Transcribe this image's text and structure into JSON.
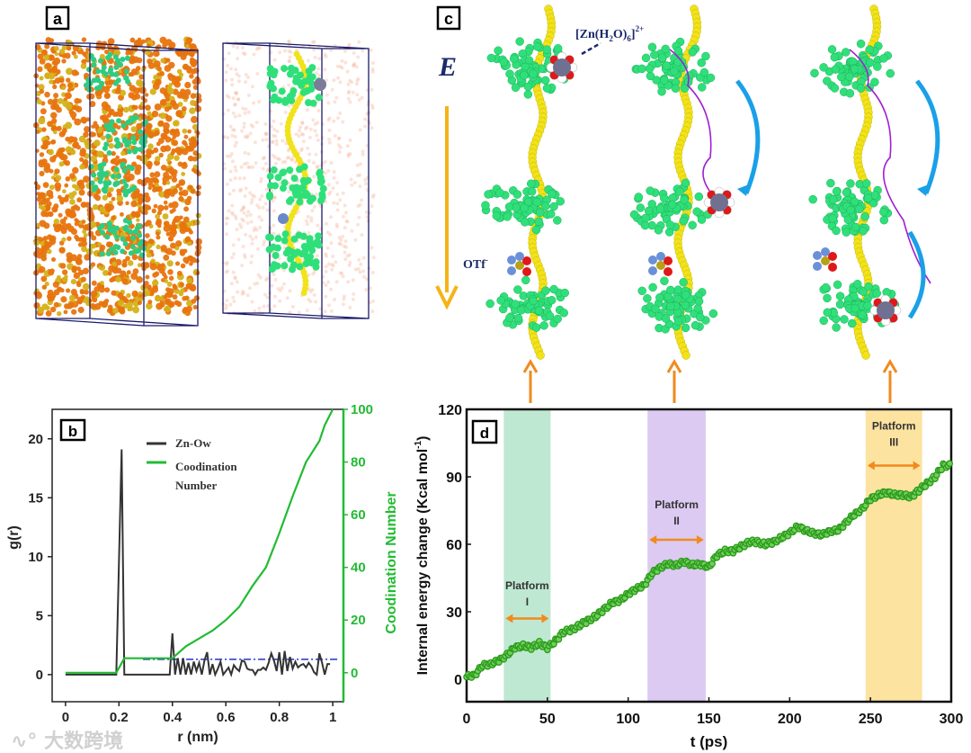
{
  "panels": {
    "a": {
      "label": "a"
    },
    "c": {
      "label": "c",
      "field_label": "E",
      "zn_label": "[Zn(H",
      "zn_sub1": "2",
      "zn_mid": "O)",
      "zn_sub2": "6",
      "zn_close": "]",
      "zn_sup": "2+",
      "otf_label": "OTf",
      "otf_sup": "-"
    }
  },
  "watermark": "大数跨境",
  "colors": {
    "zn_ow": "#333333",
    "cn": "#22bb33",
    "dash": "#2233cc",
    "energy": "#2a9a1a",
    "band1": "#bfe8d2",
    "band2": "#dccaf2",
    "band3": "#fde3a0",
    "orange": "#f08a1e",
    "green_atoms": "#2fe07a",
    "yellow_atoms": "#f2e21a"
  },
  "chart_data": [
    {
      "type": "line",
      "panel_label": "b",
      "xlabel": "r (nm)",
      "ylabel": "g(r)",
      "y2label": "Coodination Number",
      "xlim": [
        -0.05,
        1.04
      ],
      "ylim": [
        -2.3,
        22.5
      ],
      "y2lim": [
        -11,
        100
      ],
      "xticks": [
        "0",
        "0.2",
        "0.4",
        "0.6",
        "0.8",
        "1"
      ],
      "xtick_values": [
        0,
        0.2,
        0.4,
        0.6,
        0.8,
        1
      ],
      "yticks": [
        "0",
        "5",
        "10",
        "15",
        "20"
      ],
      "ytick_values": [
        0,
        5,
        10,
        15,
        20
      ],
      "y2ticks": [
        "0",
        "20",
        "40",
        "60",
        "80",
        "100"
      ],
      "y2tick_values": [
        0,
        20,
        40,
        60,
        80,
        100
      ],
      "legend": {
        "position": "top-center",
        "entries": [
          "Zn-Ow",
          "Coodination",
          "Number"
        ]
      },
      "series": [
        {
          "name": "Zn-Ow",
          "axis": "left",
          "x": [
            0,
            0.19,
            0.21,
            0.22,
            0.39,
            0.4,
            0.41,
            0.42,
            0.43,
            0.44,
            0.45,
            0.46,
            0.47,
            0.48,
            0.49,
            0.5,
            0.51,
            0.52,
            0.53,
            0.54,
            0.55,
            0.56,
            0.57,
            0.58,
            0.59,
            0.6,
            0.61,
            0.62,
            0.63,
            0.64,
            0.65,
            0.66,
            0.67,
            0.68,
            0.69,
            0.7,
            0.71,
            0.72,
            0.73,
            0.74,
            0.75,
            0.76,
            0.77,
            0.78,
            0.79,
            0.8,
            0.81,
            0.82,
            0.83,
            0.84,
            0.85,
            0.86,
            0.87,
            0.88,
            0.89,
            0.9,
            0.91,
            0.92,
            0.93,
            0.94,
            0.95,
            0.96,
            0.97,
            0.98,
            0.99
          ],
          "y": [
            0,
            0,
            19.1,
            0,
            0,
            3.5,
            0,
            1.4,
            0,
            1.4,
            0,
            1.0,
            0,
            1.1,
            0.3,
            1.0,
            0,
            1.2,
            1.9,
            0,
            0.9,
            0,
            0.5,
            1.1,
            0,
            0.3,
            0.6,
            0,
            0.8,
            0.5,
            0.3,
            1.2,
            1.1,
            0.5,
            0.4,
            0.4,
            0,
            0.4,
            0.4,
            0.6,
            0.4,
            1.0,
            1.8,
            1.2,
            0.3,
            1.9,
            0,
            2.0,
            0.3,
            1.5,
            0.5,
            1.1,
            0.6,
            0.8,
            0.9,
            0.6,
            1.0,
            0.7,
            0.2,
            0,
            1.8,
            1.0,
            0,
            0.9,
            0.9
          ]
        },
        {
          "name": "Coodination Number",
          "axis": "right",
          "x": [
            0,
            0.19,
            0.22,
            0.4,
            0.45,
            0.5,
            0.55,
            0.6,
            0.65,
            0.7,
            0.75,
            0.8,
            0.85,
            0.9,
            0.95,
            0.97,
            1.0
          ],
          "y": [
            0,
            0,
            5.5,
            5.5,
            10,
            13,
            16,
            20,
            25,
            33,
            40,
            53,
            67,
            80,
            88,
            94,
            100
          ]
        },
        {
          "name": "bulk reference",
          "axis": "left",
          "style": "dash-dot",
          "x": [
            0.29,
            1.02
          ],
          "y": [
            1.3,
            1.3
          ]
        }
      ]
    },
    {
      "type": "scatter",
      "panel_label": "d",
      "xlabel": "t (ps)",
      "ylabel": "Internal energy change (Kcal mol",
      "ylabel_sup": "-1",
      "ylabel_close": ")",
      "xlim": [
        0,
        300
      ],
      "ylim": [
        -10,
        120
      ],
      "xticks": [
        "0",
        "50",
        "100",
        "150",
        "200",
        "250",
        "300"
      ],
      "xtick_values": [
        0,
        50,
        100,
        150,
        200,
        250,
        300
      ],
      "yticks": [
        "0",
        "30",
        "60",
        "90",
        "120"
      ],
      "ytick_values": [
        0,
        30,
        60,
        90,
        120
      ],
      "bands": [
        {
          "label1": "Platform",
          "label2": "I",
          "range": [
            23,
            52
          ],
          "label_y": 40,
          "arrow_y": 27
        },
        {
          "label1": "Platform",
          "label2": "II",
          "range": [
            112,
            148
          ],
          "label_y": 76,
          "arrow_y": 62
        },
        {
          "label1": "Platform",
          "label2": "III",
          "range": [
            247,
            282
          ],
          "label_y": 111,
          "arrow_y": 95
        }
      ],
      "series": [
        {
          "name": "Internal energy change",
          "x": [
            0,
            5,
            10,
            15,
            20,
            25,
            30,
            35,
            40,
            45,
            50,
            55,
            60,
            65,
            70,
            75,
            80,
            85,
            90,
            95,
            100,
            105,
            110,
            115,
            120,
            125,
            130,
            135,
            140,
            145,
            150,
            155,
            160,
            165,
            170,
            175,
            180,
            185,
            190,
            195,
            200,
            205,
            210,
            215,
            220,
            225,
            230,
            235,
            240,
            245,
            250,
            255,
            260,
            265,
            270,
            275,
            280,
            285,
            290,
            295,
            300
          ],
          "y": [
            1,
            2,
            6,
            7,
            8,
            11,
            14,
            15,
            14,
            16,
            14,
            17,
            21,
            22,
            24,
            26,
            28,
            31,
            34,
            35,
            38,
            40,
            42,
            47,
            50,
            51,
            51,
            52,
            51,
            51,
            50,
            55,
            57,
            57,
            59,
            61,
            61,
            60,
            61,
            63,
            65,
            68,
            66,
            65,
            64,
            66,
            66,
            70,
            73,
            76,
            80,
            82,
            83,
            82,
            82,
            81,
            84,
            87,
            90,
            95,
            95
          ]
        }
      ]
    }
  ]
}
